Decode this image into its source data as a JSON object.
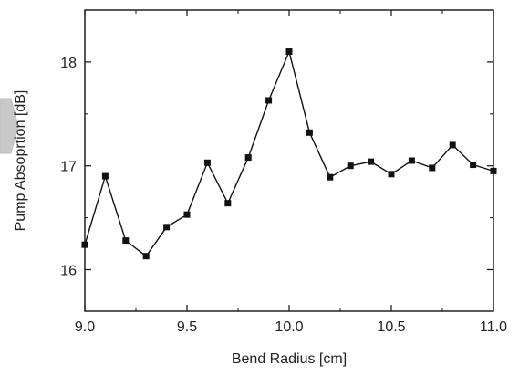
{
  "chart_data": {
    "type": "line",
    "xlabel": "Bend Radius [cm]",
    "ylabel": "Pump Absoprtion [dB]",
    "xlim": [
      9.0,
      11.0
    ],
    "ylim": [
      15.6,
      18.5
    ],
    "xticks": [
      9.0,
      9.5,
      10.0,
      10.5,
      11.0
    ],
    "xtick_labels": [
      "9.0",
      "9.5",
      "10.0",
      "10.5",
      "11.0"
    ],
    "yticks": [
      16,
      17,
      18
    ],
    "ytick_labels": [
      "16",
      "17",
      "18"
    ],
    "grid": false,
    "legend": "none",
    "marker": "square",
    "color": "#111111",
    "series": [
      {
        "x": [
          9.0,
          9.1,
          9.2,
          9.3,
          9.4,
          9.5,
          9.6,
          9.7,
          9.8,
          9.9,
          10.0,
          10.1,
          10.2,
          10.3,
          10.4,
          10.5,
          10.6,
          10.7,
          10.8,
          10.9,
          11.0
        ],
        "y": [
          16.24,
          16.9,
          16.28,
          16.13,
          16.41,
          16.53,
          17.03,
          16.64,
          17.08,
          17.63,
          18.1,
          17.32,
          16.89,
          17.0,
          17.04,
          16.92,
          17.05,
          16.98,
          17.2,
          17.01,
          16.95
        ]
      }
    ]
  }
}
